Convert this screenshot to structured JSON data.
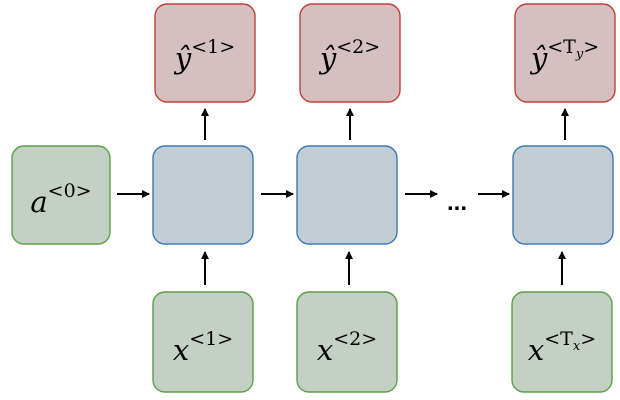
{
  "colors": {
    "output_fill": "#d4c0c0",
    "output_stroke": "#c0403a",
    "input_fill": "#c5d0c5",
    "input_stroke": "#5aa048",
    "cell_fill": "#c4ccd4",
    "cell_stroke": "#3f7ab5",
    "arrow": "#000000"
  },
  "initial_state": {
    "base": "a",
    "sup": "<0>",
    "sub": ""
  },
  "outputs": [
    {
      "base": "ŷ",
      "sup": "<1>",
      "sub": ""
    },
    {
      "base": "ŷ",
      "sup": "<2>",
      "sub": ""
    },
    {
      "base": "ŷ",
      "sup_open": "<T",
      "sub": "y",
      "sup_close": ">"
    }
  ],
  "inputs": [
    {
      "base": "x",
      "sup": "<1>",
      "sub": ""
    },
    {
      "base": "x",
      "sup": "<2>",
      "sub": ""
    },
    {
      "base": "x",
      "sup_open": "<T",
      "sub": "x",
      "sup_close": ">"
    }
  ],
  "ellipsis": "..."
}
